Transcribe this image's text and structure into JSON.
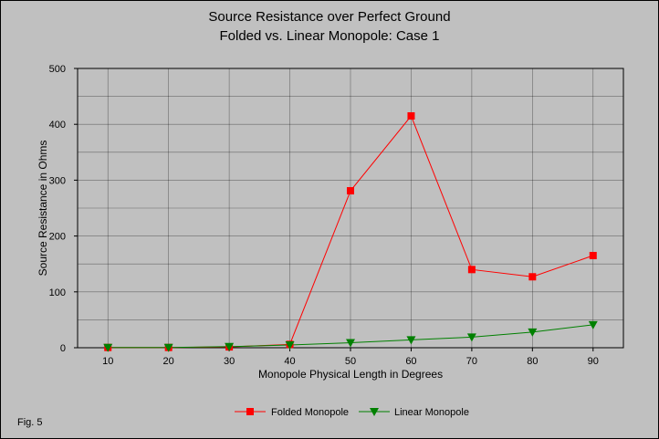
{
  "chart_data": {
    "type": "line",
    "title": "Source Resistance over Perfect Ground",
    "subtitle": "Folded vs. Linear Monopole: Case 1",
    "xlabel": "Monopole Physical Length in Degrees",
    "ylabel": "Source Resistance in Ohms",
    "x": [
      10,
      20,
      30,
      40,
      50,
      60,
      70,
      80,
      90
    ],
    "xlim": [
      5,
      95
    ],
    "ylim": [
      0,
      500
    ],
    "x_ticks": [
      "10",
      "20",
      "30",
      "40",
      "50",
      "60",
      "70",
      "80",
      "90"
    ],
    "y_ticks": [
      "0",
      "100",
      "200",
      "300",
      "400",
      "500"
    ],
    "grid": true,
    "legend_position": "bottom",
    "series": [
      {
        "name": "Folded Monopole",
        "color": "#ff0000",
        "marker": "square",
        "values": [
          0.5,
          0.5,
          1.5,
          6,
          281,
          415,
          140,
          127,
          165
        ]
      },
      {
        "name": "Linear Monopole",
        "color": "#008000",
        "marker": "triangle-down",
        "values": [
          0.4,
          0.5,
          2,
          5,
          9,
          14,
          19,
          28,
          41
        ]
      }
    ],
    "annotation": "Fig. 5"
  }
}
